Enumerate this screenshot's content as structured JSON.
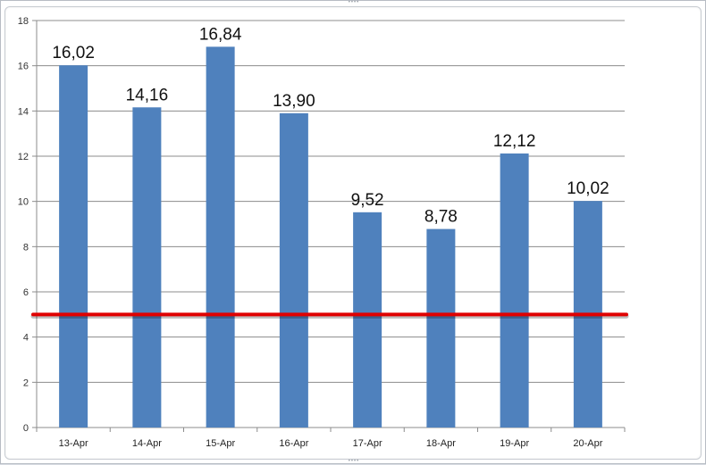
{
  "chart_data": {
    "type": "bar",
    "categories": [
      "13-Apr",
      "14-Apr",
      "15-Apr",
      "16-Apr",
      "17-Apr",
      "18-Apr",
      "19-Apr",
      "20-Apr"
    ],
    "values": [
      16.02,
      14.16,
      16.84,
      13.9,
      9.52,
      8.78,
      12.12,
      10.02
    ],
    "data_labels": [
      "16,02",
      "14,16",
      "16,84",
      "13,90",
      "9,52",
      "8,78",
      "12,12",
      "10,02"
    ],
    "y_ticks": [
      0,
      2,
      4,
      6,
      8,
      10,
      12,
      14,
      16,
      18
    ],
    "ylim": [
      0,
      18
    ],
    "grid": true,
    "legend": "none",
    "reference_line": {
      "value": 5,
      "color": "#e00000"
    },
    "bar_color": "#4f81bd",
    "title": "",
    "xlabel": "",
    "ylabel": ""
  }
}
